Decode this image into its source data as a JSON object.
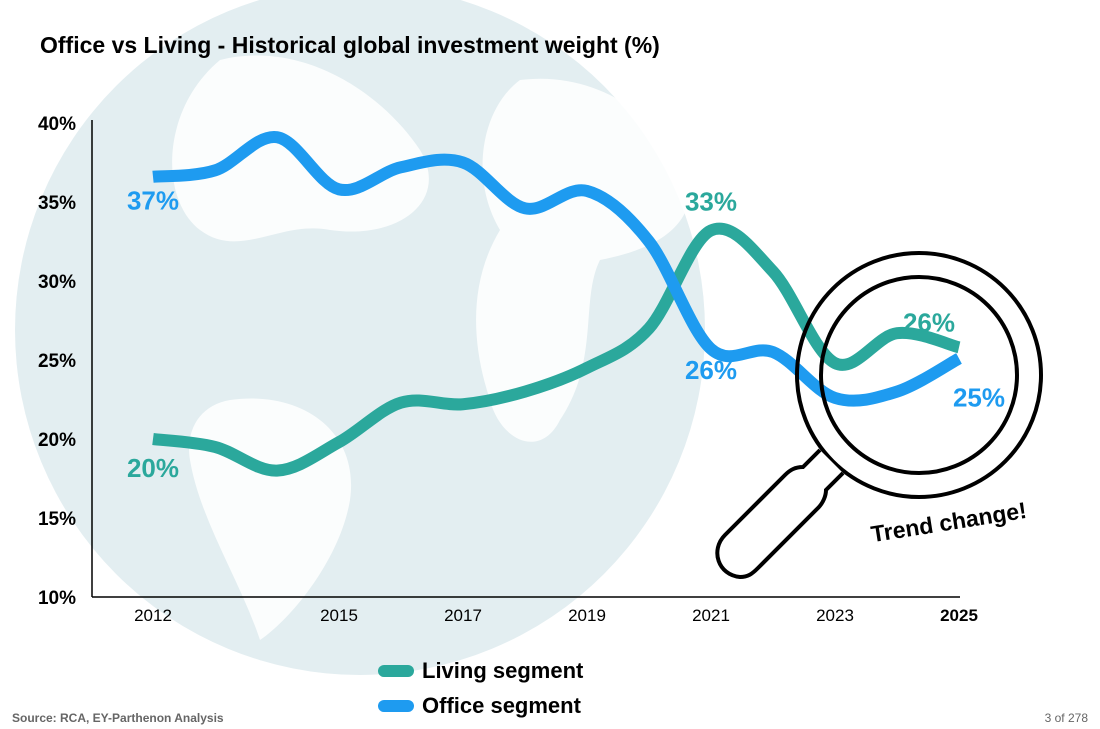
{
  "chart_data": {
    "type": "line",
    "title": "Office vs Living - Historical global investment weight (%)",
    "x": [
      2012,
      2013,
      2014,
      2015,
      2016,
      2017,
      2018,
      2019,
      2020,
      2021,
      2022,
      2023,
      2024,
      2025
    ],
    "x_tick_labels": [
      "2012",
      "2015",
      "2017",
      "2019",
      "2021",
      "2023",
      "2025"
    ],
    "x_tick_values": [
      2012,
      2015,
      2017,
      2019,
      2021,
      2023,
      2025
    ],
    "y_tick_labels": [
      "10%",
      "15%",
      "20%",
      "25%",
      "30%",
      "35%",
      "40%"
    ],
    "y_tick_values": [
      10,
      15,
      20,
      25,
      30,
      35,
      40
    ],
    "ylim": [
      10,
      40
    ],
    "xlim": [
      2012,
      2025
    ],
    "grid": false,
    "legend_position": "bottom",
    "series": [
      {
        "name": "Living segment",
        "color": "#2BA89C",
        "values": [
          20.0,
          19.5,
          18.0,
          19.8,
          22.3,
          22.2,
          23.0,
          24.5,
          27.0,
          33.2,
          30.6,
          24.8,
          26.7,
          25.8
        ]
      },
      {
        "name": "Office segment",
        "color": "#1E9BF0",
        "values": [
          36.6,
          37.0,
          39.1,
          35.8,
          37.2,
          37.5,
          34.6,
          35.7,
          32.5,
          25.7,
          25.5,
          22.6,
          23.0,
          25.1
        ]
      }
    ],
    "data_labels": [
      {
        "text": "37%",
        "series": "Office segment",
        "x": 2012
      },
      {
        "text": "20%",
        "series": "Living segment",
        "x": 2012
      },
      {
        "text": "33%",
        "series": "Living segment",
        "x": 2021
      },
      {
        "text": "26%",
        "series": "Office segment",
        "x": 2021
      },
      {
        "text": "26%",
        "series": "Living segment",
        "x": 2025
      },
      {
        "text": "25%",
        "series": "Office segment",
        "x": 2025
      }
    ],
    "annotation": "Trend change!"
  },
  "footer": {
    "source": "Source: RCA, EY-Parthenon Analysis",
    "page": "3 of 278"
  }
}
